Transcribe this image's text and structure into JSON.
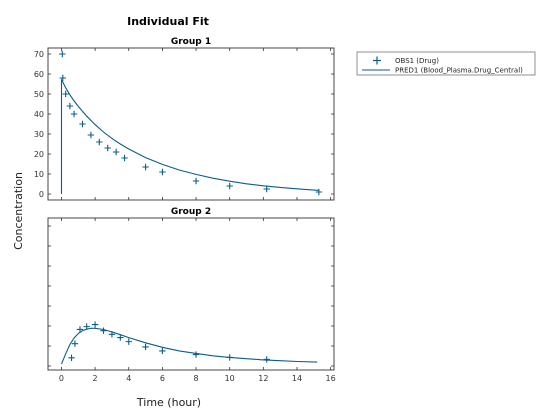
{
  "figure": {
    "title": "Individual Fit",
    "xlabel": "Time (hour)",
    "ylabel": "Concentration"
  },
  "legend": {
    "entries": [
      {
        "label": "OBS1 (Drug)",
        "marker": "plus",
        "color": "#0b5e8a"
      },
      {
        "label": "PRED1 (Blood_Plasma.Drug_Central)",
        "marker": "line",
        "color": "#0b5e8a"
      }
    ]
  },
  "chart_data": [
    {
      "type": "scatter",
      "title": "Group 1",
      "x_ticks": [
        0,
        2,
        4,
        6,
        8,
        10,
        12,
        14,
        16
      ],
      "y_ticks": [
        0,
        10,
        20,
        30,
        40,
        50,
        60,
        70
      ],
      "xlim": [
        -0.8,
        16.2
      ],
      "ylim": [
        -3,
        73
      ],
      "series": [
        {
          "name": "OBS1 (Drug)",
          "kind": "points",
          "color": "#0b5e8a",
          "x": [
            0.05,
            0.08,
            0.25,
            0.5,
            0.75,
            1.25,
            1.75,
            2.25,
            2.75,
            3.25,
            3.75,
            5.0,
            6.0,
            8.0,
            10.0,
            12.2,
            15.3
          ],
          "y": [
            70,
            58,
            50,
            44,
            40,
            35,
            29.5,
            26,
            23,
            21,
            18,
            13.5,
            11,
            6.5,
            4,
            2.5,
            1
          ]
        },
        {
          "name": "PRED1 (Blood_Plasma.Drug_Central)",
          "kind": "line",
          "color": "#0b5e8a",
          "x": [
            0,
            0,
            0.1,
            0.25,
            0.5,
            0.75,
            1,
            1.5,
            2,
            2.5,
            3,
            3.5,
            4,
            5,
            6,
            7,
            8,
            9,
            10,
            11,
            12,
            13,
            14,
            15.3
          ],
          "y": [
            0,
            57,
            55.7,
            53.1,
            49.6,
            46.5,
            43.8,
            38.9,
            34.7,
            31.0,
            27.8,
            25.0,
            22.5,
            18.2,
            14.8,
            12.0,
            9.8,
            7.9,
            6.4,
            5.1,
            4.1,
            3.3,
            2.6,
            1.8
          ]
        }
      ]
    },
    {
      "type": "scatter",
      "title": "Group 2",
      "x_ticks": [
        0,
        2,
        4,
        6,
        8,
        10,
        12,
        14,
        16
      ],
      "y_ticks": [],
      "xlim": [
        -0.8,
        16.2
      ],
      "ylim": [
        -1.5,
        36
      ],
      "series": [
        {
          "name": "OBS1 (Drug)",
          "kind": "points",
          "color": "#0b5e8a",
          "x": [
            0.6,
            0.8,
            1.1,
            1.5,
            2.0,
            2.5,
            3.0,
            3.5,
            4.0,
            5.0,
            6.0,
            8.0,
            10.0,
            12.2
          ],
          "y": [
            1.5,
            5,
            8.5,
            9.2,
            9.7,
            8.2,
            7.3,
            6.5,
            5.5,
            4.2,
            3.2,
            2.3,
            1.6,
            1.1
          ]
        },
        {
          "name": "PRED1 (Blood_Plasma.Drug_Central)",
          "kind": "line",
          "color": "#0b5e8a",
          "x": [
            0,
            0.25,
            0.5,
            0.75,
            1,
            1.25,
            1.5,
            1.75,
            2,
            2.5,
            3,
            3.5,
            4,
            5,
            6,
            7,
            8,
            9,
            10,
            11,
            12,
            13,
            14,
            15.2
          ],
          "y": [
            0,
            2.5,
            4.8,
            6.4,
            7.5,
            8.2,
            8.6,
            8.8,
            8.8,
            8.5,
            7.9,
            7.2,
            6.5,
            5.2,
            4.1,
            3.2,
            2.6,
            2.0,
            1.6,
            1.3,
            1.0,
            0.8,
            0.6,
            0.45
          ]
        }
      ]
    }
  ]
}
